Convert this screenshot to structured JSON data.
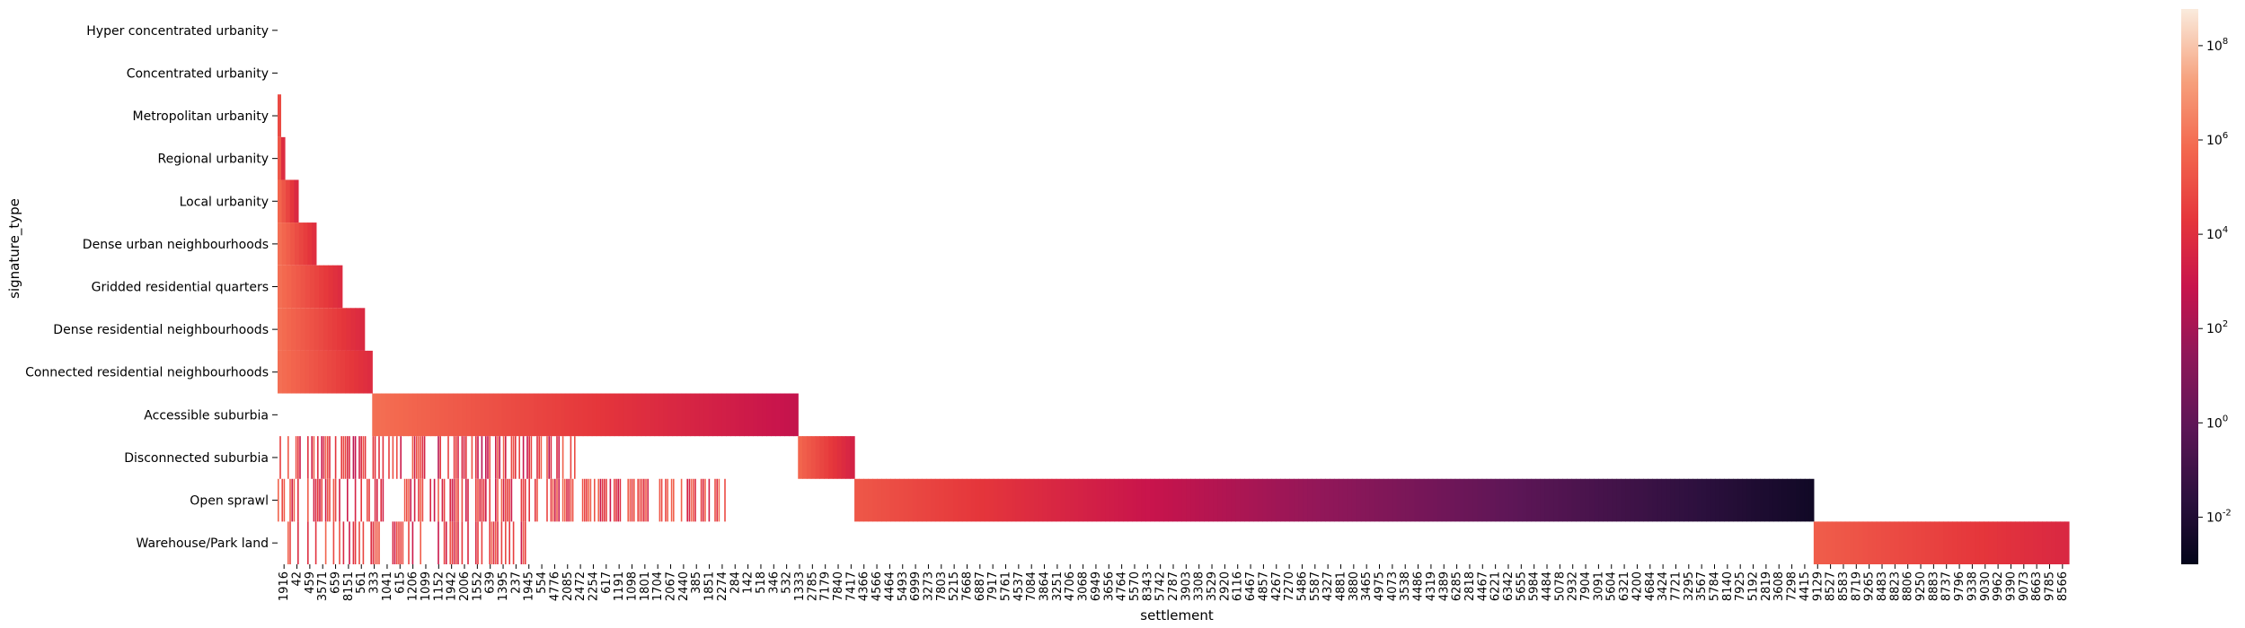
{
  "chart_data": {
    "type": "heatmap",
    "title": "",
    "xlabel": "settlement",
    "ylabel": "signature_type",
    "rows": [
      "Hyper concentrated urbanity",
      "Concentrated urbanity",
      "Metropolitan urbanity",
      "Regional urbanity",
      "Local urbanity",
      "Dense urban neighbourhoods",
      "Gridded residential quarters",
      "Dense residential neighbourhoods",
      "Connected residential neighbourhoods",
      "Accessible suburbia",
      "Disconnected suburbia",
      "Open sprawl",
      "Warehouse/Park land"
    ],
    "x_tick_labels": [
      "1916",
      "42",
      "459",
      "3571",
      "659",
      "8151",
      "561",
      "333",
      "1041",
      "615",
      "1206",
      "1099",
      "1152",
      "1942",
      "2006",
      "1552",
      "639",
      "1395",
      "237",
      "1945",
      "554",
      "4776",
      "2085",
      "2472",
      "2254",
      "617",
      "1191",
      "1098",
      "1801",
      "1704",
      "2067",
      "2440",
      "385",
      "1851",
      "2274",
      "284",
      "142",
      "518",
      "346",
      "532",
      "1333",
      "2785",
      "7179",
      "7840",
      "7417",
      "4366",
      "4566",
      "4464",
      "5493",
      "6999",
      "3273",
      "7803",
      "5215",
      "7668",
      "6887",
      "7917",
      "5761",
      "4537",
      "7084",
      "3864",
      "3251",
      "4706",
      "3068",
      "6949",
      "3656",
      "4764",
      "5570",
      "8343",
      "5742",
      "2787",
      "3903",
      "3308",
      "3529",
      "2920",
      "6116",
      "6467",
      "4857",
      "4267",
      "7270",
      "5486",
      "5587",
      "4327",
      "4881",
      "3880",
      "3465",
      "4975",
      "4073",
      "3538",
      "4486",
      "4319",
      "4389",
      "6285",
      "2818",
      "4467",
      "6221",
      "6342",
      "5655",
      "5984",
      "4484",
      "5078",
      "2932",
      "7904",
      "3091",
      "5604",
      "6321",
      "4200",
      "4684",
      "3424",
      "7721",
      "3295",
      "3567",
      "5784",
      "8140",
      "7925",
      "5192",
      "2819",
      "3608",
      "7298",
      "4415",
      "9129",
      "8527",
      "8583",
      "8719",
      "9265",
      "8483",
      "8823",
      "8806",
      "9250",
      "8883",
      "8737",
      "9796",
      "9338",
      "9030",
      "9962",
      "9390",
      "9073",
      "8663",
      "9785",
      "8566"
    ],
    "colorbar": {
      "scale": "log",
      "range": [
        0.001,
        600000000
      ],
      "tick_exponents": [
        -2,
        0,
        2,
        4,
        6,
        8
      ],
      "tick_base": "10"
    },
    "blocks": [
      {
        "row": 2,
        "start": 0.0,
        "end": 0.0017,
        "from": 80000,
        "to": 8000
      },
      {
        "row": 3,
        "start": 0.0,
        "end": 0.004,
        "from": 200000,
        "to": 8000
      },
      {
        "row": 4,
        "start": 0.0,
        "end": 0.0115,
        "from": 500000,
        "to": 6000
      },
      {
        "row": 5,
        "start": 0.0,
        "end": 0.0215,
        "from": 1000000,
        "to": 10000
      },
      {
        "row": 6,
        "start": 0.0,
        "end": 0.036,
        "from": 1000000,
        "to": 8000
      },
      {
        "row": 7,
        "start": 0.0,
        "end": 0.0485,
        "from": 1000000,
        "to": 6000
      },
      {
        "row": 8,
        "start": 0.0,
        "end": 0.0528,
        "from": 1000000,
        "to": 8000
      },
      {
        "row": 9,
        "start": 0.0528,
        "end": 0.2905,
        "from": 1000000,
        "to": 600
      },
      {
        "row": 10,
        "start": 0.2905,
        "end": 0.322,
        "from": 500000,
        "to": 3000
      },
      {
        "row": 11,
        "start": 0.322,
        "end": 0.8575,
        "from": 200000,
        "to": 0.003
      },
      {
        "row": 12,
        "start": 0.8575,
        "end": 1.0,
        "from": 300000,
        "to": 5000
      }
    ],
    "scatter_extent": [
      {
        "row": 10,
        "end": 0.1695,
        "density": 0.55,
        "lo": 300,
        "hi": 500000
      },
      {
        "row": 11,
        "end": 0.25,
        "density": 0.55,
        "lo": 1000,
        "hi": 800000
      },
      {
        "row": 12,
        "end": 0.14,
        "density": 0.45,
        "lo": 1000,
        "hi": 500000
      }
    ],
    "grid": false,
    "legend": "none"
  }
}
